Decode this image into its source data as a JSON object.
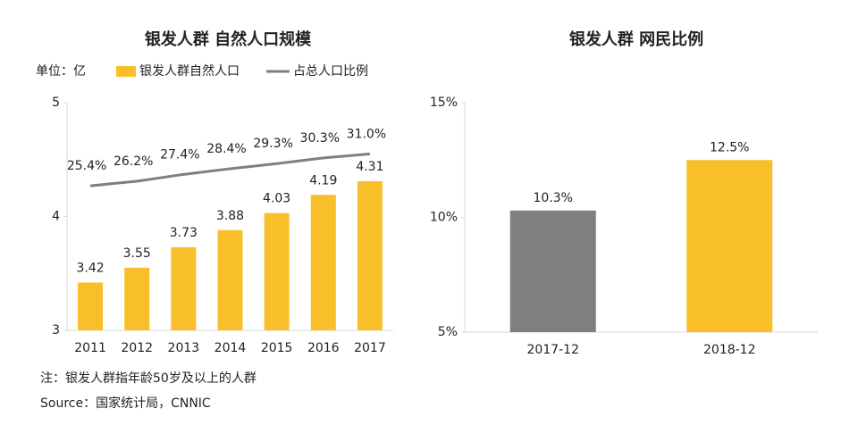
{
  "chart_data": [
    {
      "type": "bar_line",
      "title": "银发人群 自然人口规模",
      "unit_label": "单位：亿",
      "categories": [
        "2011",
        "2012",
        "2013",
        "2014",
        "2015",
        "2016",
        "2017"
      ],
      "series": [
        {
          "name": "银发人群自然人口",
          "type": "bar",
          "color": "#f8bf2a",
          "values": [
            3.42,
            3.55,
            3.73,
            3.88,
            4.03,
            4.19,
            4.31
          ]
        },
        {
          "name": "占总人口比例",
          "type": "line",
          "axis": "y2",
          "color": "#7f7f7f",
          "values": [
            25.4,
            26.2,
            27.4,
            28.4,
            29.3,
            30.3,
            31.0
          ],
          "value_labels": [
            "25.4%",
            "26.2%",
            "27.4%",
            "28.4%",
            "29.3%",
            "30.3%",
            "31.0%"
          ]
        }
      ],
      "ylim": [
        3,
        5
      ],
      "yticks": [
        3,
        4,
        5
      ],
      "y2lim": [
        0,
        40
      ],
      "notes": [
        "注：银发人群指年龄50岁及以上的人群",
        "Source：国家统计局，CNNIC"
      ]
    },
    {
      "type": "bar",
      "title": "银发人群 网民比例",
      "categories": [
        "2017-12",
        "2018-12"
      ],
      "values": [
        10.3,
        12.5
      ],
      "value_labels": [
        "10.3%",
        "12.5%"
      ],
      "colors": [
        "#7f7f7f",
        "#f8bf2a"
      ],
      "ylim": [
        5,
        15
      ],
      "yticks": [
        {
          "value": 5,
          "label": "5%"
        },
        {
          "value": 10,
          "label": "10%"
        },
        {
          "value": 15,
          "label": "15%"
        }
      ]
    }
  ]
}
